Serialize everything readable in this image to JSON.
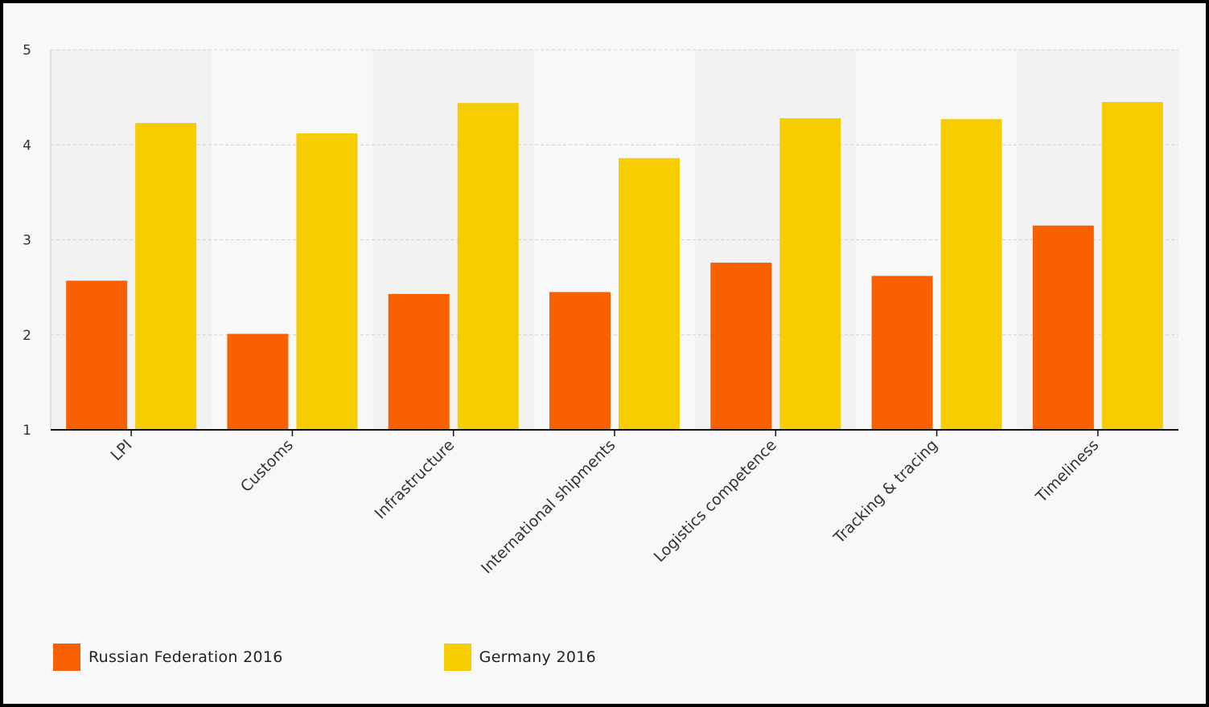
{
  "chart_data": {
    "type": "bar",
    "title": "",
    "xlabel": "",
    "ylabel": "",
    "ylim": [
      1,
      5
    ],
    "yticks": [
      1,
      2,
      3,
      4,
      5
    ],
    "grid": true,
    "legend_position": "bottom-left",
    "categories": [
      "LPI",
      "Customs",
      "Infrastructure",
      "International shipments",
      "Logistics competence",
      "Tracking & tracing",
      "Timeliness"
    ],
    "series": [
      {
        "name": "Russian Federation 2016",
        "color": "#f96100",
        "values": [
          2.57,
          2.01,
          2.43,
          2.45,
          2.76,
          2.62,
          3.15
        ]
      },
      {
        "name": "Germany 2016",
        "color": "#f5cd00",
        "values": [
          4.23,
          4.12,
          4.44,
          3.86,
          4.28,
          4.27,
          4.45
        ]
      }
    ]
  }
}
